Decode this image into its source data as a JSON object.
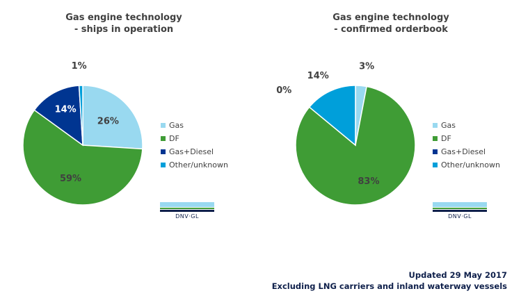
{
  "chart_data": [
    {
      "type": "pie",
      "title_lines": [
        "Gas engine technology",
        "- ships in operation"
      ],
      "categories": [
        "Gas",
        "DF",
        "Gas+Diesel",
        "Other/unknown"
      ],
      "values": [
        26,
        59,
        14,
        1
      ],
      "labels": [
        "26%",
        "59%",
        "14%",
        "1%"
      ],
      "colors": [
        "#99d9f0",
        "#3f9c35",
        "#003591",
        "#009fda"
      ],
      "legend_position": "right"
    },
    {
      "type": "pie",
      "title_lines": [
        "Gas engine technology",
        "- confirmed orderbook"
      ],
      "categories": [
        "Gas",
        "DF",
        "Gas+Diesel",
        "Other/unknown"
      ],
      "values": [
        3,
        83,
        0,
        14
      ],
      "labels": [
        "3%",
        "83%",
        "0%",
        "14%"
      ],
      "colors": [
        "#99d9f0",
        "#3f9c35",
        "#003591",
        "#009fda"
      ],
      "legend_position": "right"
    }
  ],
  "brand": {
    "text": "DNV·GL"
  },
  "footer": {
    "line1": "Updated 29 May 2017",
    "line2": "Excluding LNG carriers and inland waterway vessels"
  }
}
